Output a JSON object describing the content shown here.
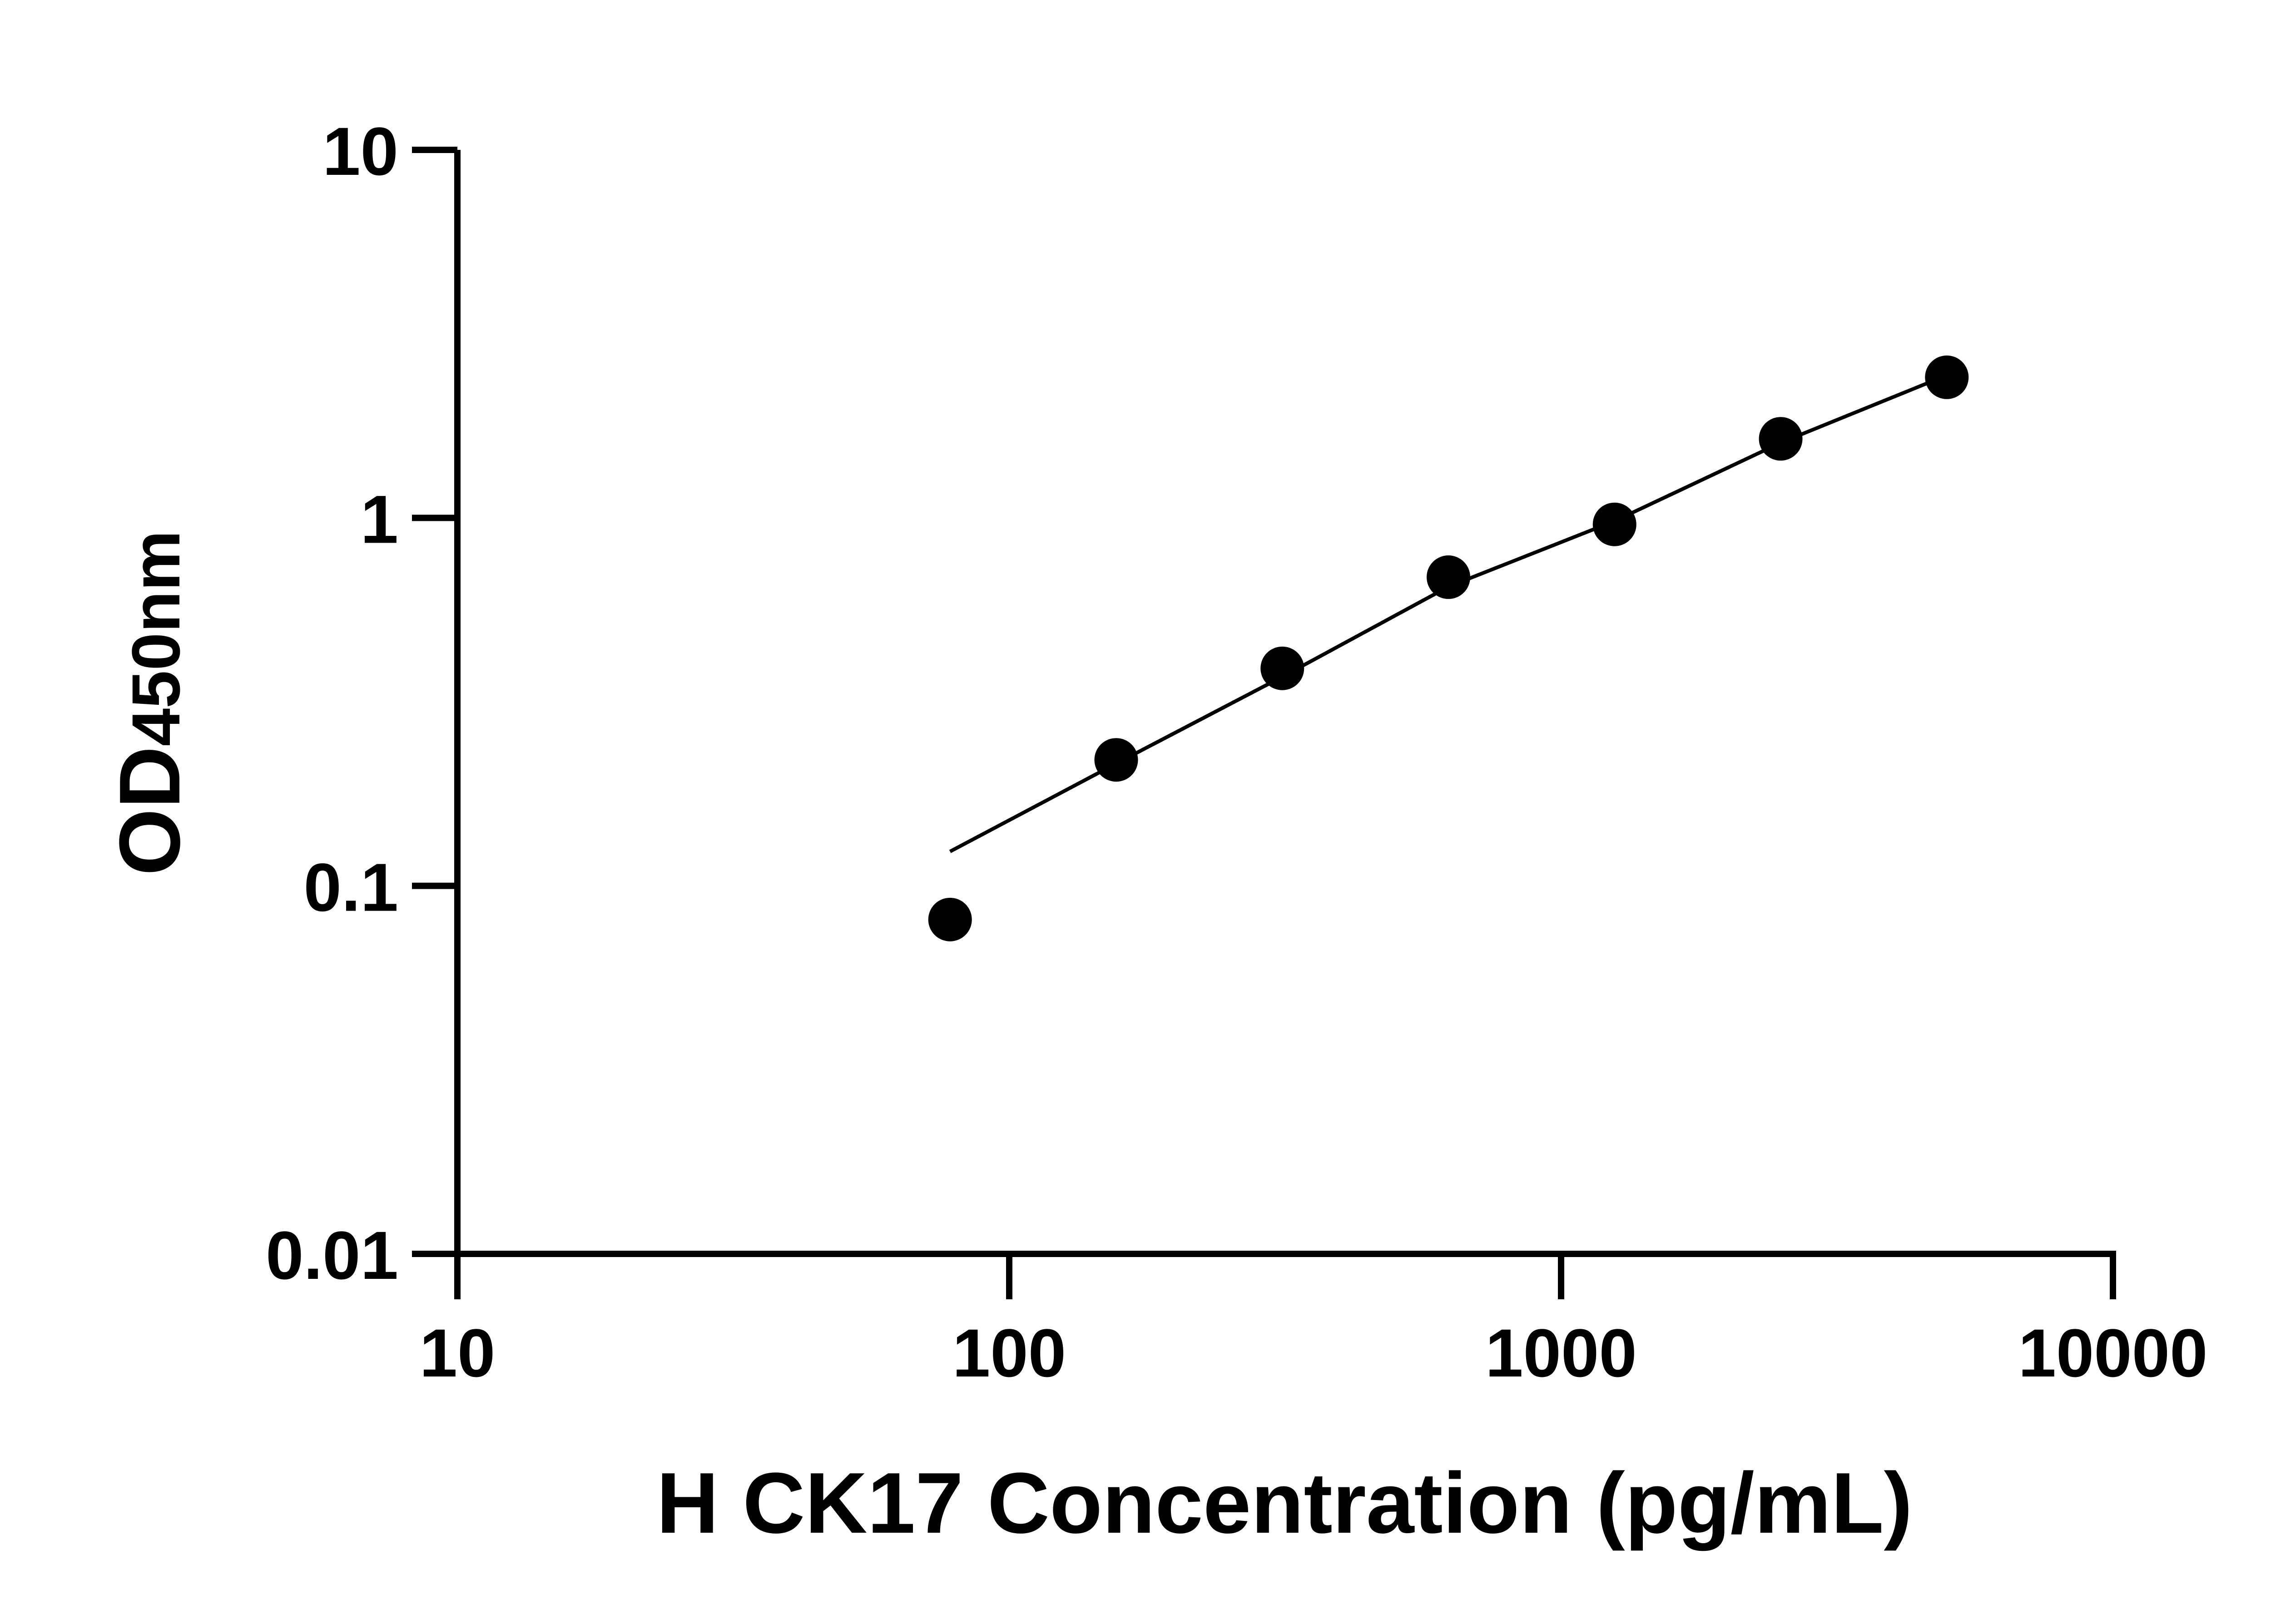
{
  "chart_data": {
    "type": "scatter",
    "title": "",
    "xlabel": "H CK17 Concentration (pg/mL)",
    "ylabel_main": "OD",
    "ylabel_sub": "450nm",
    "x_scale": "log",
    "y_scale": "log",
    "xlim": [
      10,
      10000
    ],
    "ylim": [
      0.01,
      10
    ],
    "x_ticks": [
      10,
      100,
      1000,
      10000
    ],
    "x_tick_labels": [
      "10",
      "100",
      "1000",
      "10000"
    ],
    "y_ticks": [
      0.01,
      0.1,
      1,
      10
    ],
    "y_tick_labels": [
      "0.01",
      "0.1",
      "1",
      "10"
    ],
    "grid": false,
    "legend": "none",
    "points": {
      "x": [
        78.125,
        156.25,
        312.5,
        625,
        1250,
        2500,
        5000
      ],
      "y": [
        0.081,
        0.22,
        0.39,
        0.69,
        0.96,
        1.64,
        2.41
      ]
    },
    "fit_line": {
      "x": [
        78.125,
        156.25,
        312.5,
        625,
        1250,
        2500,
        4700
      ],
      "y": [
        0.124,
        0.215,
        0.37,
        0.65,
        0.98,
        1.6,
        2.35
      ]
    },
    "color": "#000000"
  }
}
